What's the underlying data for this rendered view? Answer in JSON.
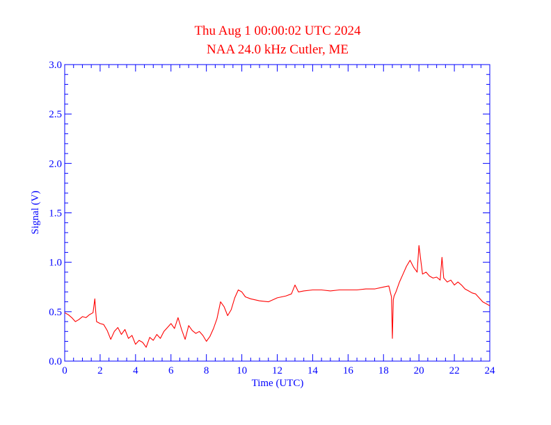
{
  "chart_data": {
    "type": "line",
    "title": "Thu Aug 1 00:00:02 UTC 2024",
    "subtitle": "NAA 24.0 kHz Cutler, ME",
    "xlabel": "Time (UTC)",
    "ylabel": "Signal (V)",
    "xlim": [
      0,
      24
    ],
    "ylim": [
      0,
      3.0
    ],
    "xticks": [
      "0",
      "2",
      "4",
      "6",
      "8",
      "10",
      "12",
      "14",
      "16",
      "18",
      "20",
      "22",
      "24"
    ],
    "yticks": [
      "0.0",
      "0.5",
      "1.0",
      "1.5",
      "2.0",
      "2.5",
      "3.0"
    ],
    "grid": false,
    "colors": {
      "axis": "#0000ff",
      "line": "#ff0000",
      "title": "#ff0000"
    },
    "series": [
      {
        "x": [
          0,
          0.2,
          0.4,
          0.6,
          0.8,
          1.0,
          1.2,
          1.4,
          1.6,
          1.7,
          1.75,
          1.8,
          2.0,
          2.2,
          2.4,
          2.6,
          2.8,
          3.0,
          3.2,
          3.4,
          3.6,
          3.8,
          4.0,
          4.2,
          4.4,
          4.6,
          4.8,
          5.0,
          5.2,
          5.4,
          5.6,
          5.8,
          6.0,
          6.2,
          6.4,
          6.6,
          6.8,
          7.0,
          7.2,
          7.4,
          7.6,
          7.8,
          8.0,
          8.2,
          8.4,
          8.6,
          8.8,
          9.0,
          9.2,
          9.4,
          9.6,
          9.8,
          10.0,
          10.2,
          10.5,
          11.0,
          11.5,
          12.0,
          12.5,
          12.8,
          13.0,
          13.2,
          13.5,
          14.0,
          14.5,
          15.0,
          15.5,
          16.0,
          16.5,
          17.0,
          17.5,
          18.0,
          18.3,
          18.45,
          18.5,
          18.55,
          18.6,
          18.7,
          18.9,
          19.1,
          19.3,
          19.5,
          19.7,
          19.9,
          20.0,
          20.2,
          20.4,
          20.6,
          20.8,
          21.0,
          21.2,
          21.3,
          21.4,
          21.6,
          21.8,
          22.0,
          22.2,
          22.4,
          22.6,
          22.8,
          23.0,
          23.2,
          23.4,
          23.6,
          23.8,
          24.0
        ],
        "y": [
          0.49,
          0.47,
          0.44,
          0.4,
          0.42,
          0.45,
          0.44,
          0.47,
          0.49,
          0.63,
          0.5,
          0.4,
          0.38,
          0.37,
          0.31,
          0.22,
          0.3,
          0.34,
          0.27,
          0.32,
          0.23,
          0.26,
          0.17,
          0.21,
          0.19,
          0.14,
          0.24,
          0.21,
          0.27,
          0.23,
          0.3,
          0.34,
          0.38,
          0.33,
          0.44,
          0.32,
          0.22,
          0.36,
          0.31,
          0.28,
          0.3,
          0.26,
          0.2,
          0.25,
          0.33,
          0.43,
          0.6,
          0.55,
          0.46,
          0.52,
          0.64,
          0.72,
          0.7,
          0.65,
          0.63,
          0.61,
          0.6,
          0.64,
          0.66,
          0.68,
          0.77,
          0.7,
          0.71,
          0.72,
          0.72,
          0.71,
          0.72,
          0.72,
          0.72,
          0.73,
          0.73,
          0.75,
          0.76,
          0.65,
          0.23,
          0.62,
          0.66,
          0.7,
          0.8,
          0.88,
          0.96,
          1.02,
          0.95,
          0.9,
          1.17,
          0.88,
          0.9,
          0.86,
          0.84,
          0.85,
          0.82,
          1.05,
          0.84,
          0.8,
          0.82,
          0.77,
          0.8,
          0.77,
          0.73,
          0.71,
          0.69,
          0.68,
          0.64,
          0.6,
          0.58,
          0.56
        ]
      }
    ]
  }
}
